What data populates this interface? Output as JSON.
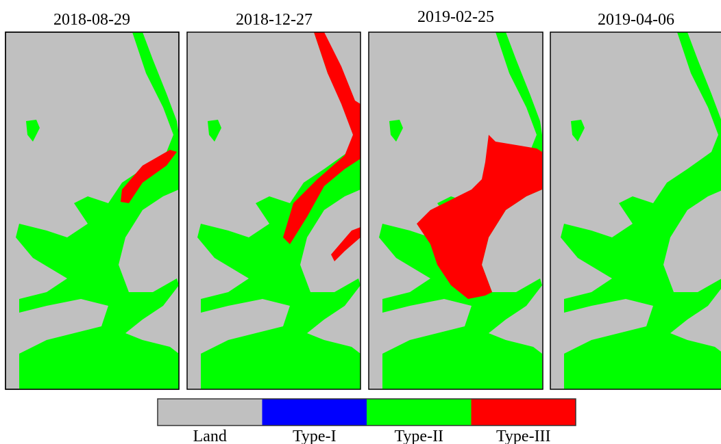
{
  "panels": [
    {
      "date": "2018-08-29"
    },
    {
      "date": "2018-12-27"
    },
    {
      "date": "2019-02-25"
    },
    {
      "date": "2019-04-06"
    }
  ],
  "legend": [
    {
      "label": "Land",
      "color": "#c0c0c0"
    },
    {
      "label": "Type-I",
      "color": "#0000ff"
    },
    {
      "label": "Type-II",
      "color": "#00ff00"
    },
    {
      "label": "Type-III",
      "color": "#ff0000"
    }
  ]
}
